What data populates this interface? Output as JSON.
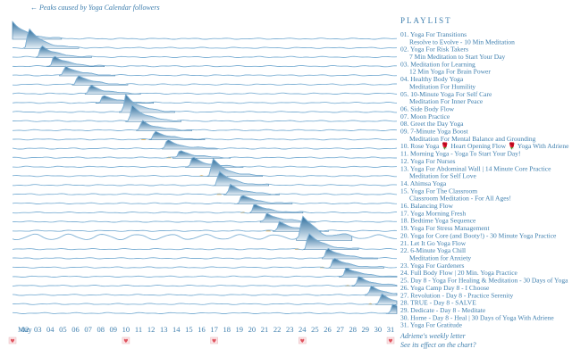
{
  "chart_data": {
    "type": "area",
    "style": "ridgeline",
    "annotation": "← Peaks caused by Yoga Calendar followers",
    "playlist_header": "PLAYLIST",
    "x_start_label": "May",
    "x_ticks": [
      "02",
      "03",
      "04",
      "05",
      "06",
      "07",
      "08",
      "09",
      "10",
      "11",
      "12",
      "13",
      "14",
      "15",
      "16",
      "17",
      "18",
      "19",
      "20",
      "21",
      "22",
      "23",
      "24",
      "25",
      "26",
      "27",
      "28",
      "29",
      "30",
      "31"
    ],
    "x_range": [
      1,
      31.5
    ],
    "heart_days": [
      1,
      10,
      17,
      24,
      31
    ],
    "heart_color": "#e0545f",
    "footer_lines": [
      "Adriene's weekly letter",
      "See its effect on the chart?"
    ],
    "colors": {
      "ridge_line": "#7fb1d5",
      "fill_top": "#2f6f9e",
      "fill_bottom": "#e4eef6",
      "text": "#3f7fae",
      "bump": "#e8a83a"
    },
    "series": [
      {
        "name": [
          "01. Yoga For Transitions",
          "Resolve to Evolve - 10 Min Meditation"
        ],
        "peak_day": 1.0,
        "peak_height": 1.6
      },
      {
        "name": [
          "02. Yoga For Risk Takers",
          "7 Min Meditation to Start Your Day"
        ],
        "peak_day": 2.3,
        "peak_height": 1.8
      },
      {
        "name": [
          "03. Meditation for Learning",
          "12 Min Yoga For Brain Power"
        ],
        "peak_day": 3.3,
        "peak_height": 1.1
      },
      {
        "name": [
          "04. Healthy Body Yoga",
          "Meditation For Humility"
        ],
        "peak_day": 4.3,
        "peak_height": 1.0
      },
      {
        "name": [
          "05. 10-Minute Yoga For Self Care",
          "Meditation For Inner Peace"
        ],
        "peak_day": 5.2,
        "peak_height": 0.9
      },
      {
        "name": [
          "06. Side Body Flow"
        ],
        "peak_day": 6.2,
        "peak_height": 0.9
      },
      {
        "name": [
          "07. Moon Practice"
        ],
        "peak_day": 7.2,
        "peak_height": 0.8
      },
      {
        "name": [
          "08. Greet the Day Yoga"
        ],
        "peak_day": 8.2,
        "peak_height": 0.75
      },
      {
        "name": [
          "09. 7-Minute Yoga Boost",
          "Meditation For Mental Balance and Grounding"
        ],
        "peak_day": 10.0,
        "peak_height": 1.6
      },
      {
        "name": [
          "10. Rose Yoga 🌹 Heart Opening Flow 🌹 Yoga With Adriene"
        ],
        "peak_day": 10.5,
        "peak_height": 1.5
      },
      {
        "name": [
          "11. Morning Yoga - Yoga To Start Your Day!"
        ],
        "peak_day": 11.3,
        "peak_height": 0.9
      },
      {
        "name": [
          "12. Yoga For Nurses"
        ],
        "peak_day": 12.3,
        "peak_height": 0.8
      },
      {
        "name": [
          "13. Yoga For Abdominal Wall | 14 Minute Core Practice",
          "Meditation for Self Love"
        ],
        "peak_day": 13.3,
        "peak_height": 0.8
      },
      {
        "name": [
          "14. Ahimsa Yoga"
        ],
        "peak_day": 14.3,
        "peak_height": 0.7
      },
      {
        "name": [
          "15. Yoga For The Classroom",
          "Classroom Meditation - For All Ages!"
        ],
        "peak_day": 15.3,
        "peak_height": 0.9
      },
      {
        "name": [
          "16. Balancing Flow"
        ],
        "peak_day": 16.9,
        "peak_height": 1.6
      },
      {
        "name": [
          "17. Yoga Morning Fresh"
        ],
        "peak_day": 17.4,
        "peak_height": 1.3
      },
      {
        "name": [
          "18. Bedtime Yoga Sequence"
        ],
        "peak_day": 18.3,
        "peak_height": 0.9
      },
      {
        "name": [
          "19. Yoga For Stress Management"
        ],
        "peak_day": 19.2,
        "peak_height": 0.8
      },
      {
        "name": [
          "20. Yoga for Core (and Booty!) - 30 Minute Yoga Practice"
        ],
        "peak_day": 20.2,
        "peak_height": 0.8
      },
      {
        "name": [
          "21. Let It Go Yoga Flow"
        ],
        "peak_day": 21.2,
        "peak_height": 0.8
      },
      {
        "name": [
          "22. 6-Minute Yoga Chill",
          "Meditation for Anxiety"
        ],
        "peak_day": 22.2,
        "peak_height": 0.9
      },
      {
        "name": [
          "23. Yoga For Gardeners"
        ],
        "peak_day": 24.0,
        "peak_height": 1.9
      },
      {
        "name": [
          "24. Full Body Flow | 20 Min. Yoga Practice"
        ],
        "peak_day": 24.5,
        "peak_height": 1.5
      },
      {
        "name": [
          "25. Day 8 - Yoga For Healing & Meditation - 30 Days of Yoga"
        ],
        "peak_day": 26.0,
        "peak_height": 1.0
      },
      {
        "name": [
          "26. Yoga Camp Day 8 - I Choose"
        ],
        "peak_day": 26.5,
        "peak_height": 0.9
      },
      {
        "name": [
          "27. Revolution - Day 8 - Practice Serenity"
        ],
        "peak_day": 27.5,
        "peak_height": 0.9
      },
      {
        "name": [
          "28. TRUE - Day 8 - SALVE"
        ],
        "peak_day": 28.5,
        "peak_height": 0.85
      },
      {
        "name": [
          "29. Dedicate - Day 8 - Meditate"
        ],
        "peak_day": 29.5,
        "peak_height": 0.8
      },
      {
        "name": [
          "30. Home - Day 8 - Heal | 30 Days of Yoga With Adriene"
        ],
        "peak_day": 30.3,
        "peak_height": 0.9
      },
      {
        "name": [
          "31. Yoga For Gratitude"
        ],
        "peak_day": 31.2,
        "peak_height": 0.9
      }
    ]
  }
}
